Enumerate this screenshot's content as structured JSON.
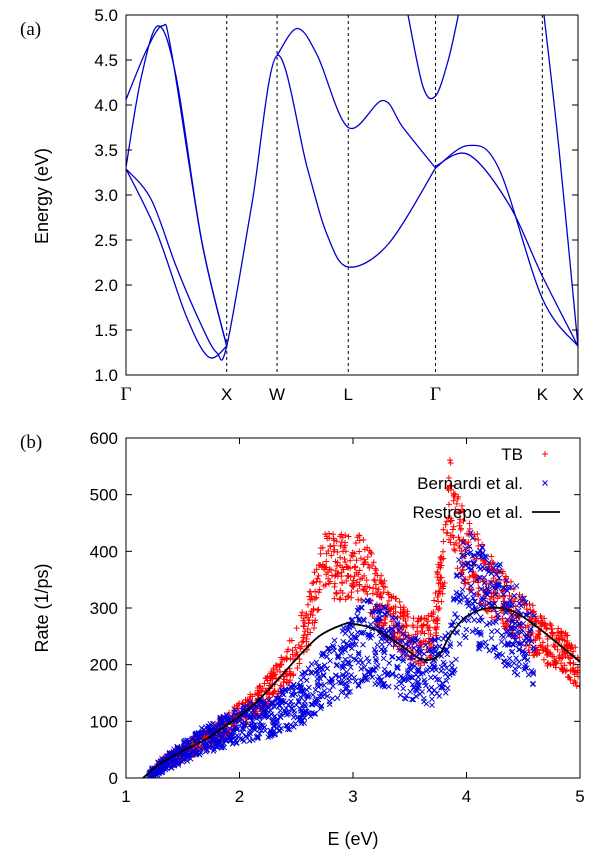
{
  "chart_data": [
    {
      "type": "line",
      "panel_label": "(a)",
      "ylabel": "Energy (eV)",
      "ylim": [
        1.0,
        5.0
      ],
      "yticks": [
        "1.0",
        "1.5",
        "2.0",
        "2.5",
        "3.0",
        "3.5",
        "4.0",
        "4.5",
        "5.0"
      ],
      "kpoints": [
        {
          "label": "Γ",
          "pos": 0.0
        },
        {
          "label": "X",
          "pos": 1.0
        },
        {
          "label": "W",
          "pos": 1.5
        },
        {
          "label": "L",
          "pos": 2.207
        },
        {
          "label": "Γ",
          "pos": 3.073
        },
        {
          "label": "K",
          "pos": 4.134
        },
        {
          "label": "X",
          "pos": 4.488
        }
      ],
      "band_color": "#0000cc",
      "series": [
        {
          "values": [
            [
              0,
              3.29
            ],
            [
              0.25,
              2.95
            ],
            [
              0.5,
              2.2
            ],
            [
              0.75,
              1.55
            ],
            [
              0.9,
              1.25
            ],
            [
              1.0,
              1.32
            ],
            [
              1.25,
              2.9
            ],
            [
              1.5,
              4.55
            ],
            [
              1.8,
              3.3
            ],
            [
              2.0,
              2.55
            ],
            [
              2.207,
              2.2
            ],
            [
              2.6,
              2.45
            ],
            [
              3.073,
              3.3
            ]
          ]
        },
        {
          "values": [
            [
              0,
              3.29
            ],
            [
              0.3,
              2.6
            ],
            [
              0.6,
              1.65
            ],
            [
              0.82,
              1.2
            ],
            [
              1.0,
              1.32
            ]
          ]
        },
        {
          "values": [
            [
              0,
              3.31
            ],
            [
              0.15,
              4.3
            ],
            [
              0.32,
              4.88
            ],
            [
              0.5,
              4.3
            ],
            [
              0.75,
              2.5
            ],
            [
              1.0,
              1.32
            ]
          ]
        },
        {
          "values": [
            [
              0,
              4.06
            ],
            [
              0.2,
              4.6
            ],
            [
              0.36,
              4.88
            ],
            [
              0.45,
              4.6
            ],
            [
              0.75,
              2.5
            ],
            [
              1.0,
              1.32
            ]
          ]
        },
        {
          "values": [
            [
              1.5,
              4.55
            ],
            [
              1.7,
              4.85
            ],
            [
              1.9,
              4.55
            ],
            [
              2.207,
              3.75
            ],
            [
              2.55,
              4.05
            ],
            [
              2.75,
              3.75
            ],
            [
              3.073,
              3.3
            ]
          ]
        },
        {
          "values": [
            [
              3.073,
              3.3
            ],
            [
              3.4,
              3.55
            ],
            [
              3.7,
              3.3
            ],
            [
              4.134,
              1.85
            ],
            [
              4.488,
              1.32
            ]
          ]
        },
        {
          "values": [
            [
              3.073,
              3.32
            ],
            [
              3.4,
              3.45
            ],
            [
              3.8,
              2.9
            ],
            [
              4.134,
              2.1
            ],
            [
              4.488,
              1.32
            ]
          ]
        },
        {
          "values": [
            [
              2.8,
              5.0
            ],
            [
              2.95,
              4.2
            ],
            [
              3.073,
              4.1
            ],
            [
              3.2,
              4.5
            ],
            [
              3.3,
              5.0
            ]
          ]
        },
        {
          "values": [
            [
              4.15,
              5.0
            ],
            [
              4.3,
              3.5
            ],
            [
              4.488,
              1.32
            ]
          ]
        }
      ]
    },
    {
      "type": "scatter",
      "panel_label": "(b)",
      "xlabel": "E (eV)",
      "ylabel": "Rate (1/ps)",
      "xlim": [
        1,
        5
      ],
      "ylim": [
        0,
        600
      ],
      "xticks": [
        "1",
        "2",
        "3",
        "4",
        "5"
      ],
      "yticks": [
        "0",
        "100",
        "200",
        "300",
        "400",
        "500",
        "600"
      ],
      "legend_position": "top-right",
      "series": [
        {
          "name": "TB",
          "marker": "+",
          "color": "#ff0000",
          "values": [
            [
              1.2,
              5
            ],
            [
              1.3,
              22
            ],
            [
              1.5,
              45
            ],
            [
              1.7,
              68
            ],
            [
              1.9,
              95
            ],
            [
              2.0,
              110
            ],
            [
              2.2,
              140
            ],
            [
              2.4,
              190
            ],
            [
              2.6,
              270
            ],
            [
              2.75,
              380
            ],
            [
              2.9,
              370
            ],
            [
              3.05,
              375
            ],
            [
              3.15,
              345
            ],
            [
              3.3,
              290
            ],
            [
              3.45,
              260
            ],
            [
              3.6,
              240
            ],
            [
              3.7,
              255
            ],
            [
              3.8,
              390
            ],
            [
              3.85,
              500
            ],
            [
              3.9,
              440
            ],
            [
              4.0,
              400
            ],
            [
              4.2,
              340
            ],
            [
              4.5,
              275
            ],
            [
              4.7,
              240
            ],
            [
              4.9,
              215
            ],
            [
              5.0,
              185
            ]
          ]
        },
        {
          "name": "Bernardi et al.",
          "marker": "x",
          "color": "#0000dd",
          "values": [
            [
              1.2,
              5
            ],
            [
              1.3,
              20
            ],
            [
              1.5,
              45
            ],
            [
              1.7,
              68
            ],
            [
              1.9,
              85
            ],
            [
              2.1,
              100
            ],
            [
              2.3,
              110
            ],
            [
              2.5,
              130
            ],
            [
              2.7,
              165
            ],
            [
              2.9,
              200
            ],
            [
              3.0,
              215
            ],
            [
              3.1,
              245
            ],
            [
              3.3,
              230
            ],
            [
              3.5,
              195
            ],
            [
              3.65,
              180
            ],
            [
              3.8,
              200
            ],
            [
              3.9,
              270
            ],
            [
              4.0,
              350
            ],
            [
              4.1,
              320
            ],
            [
              4.3,
              290
            ],
            [
              4.5,
              250
            ],
            [
              4.6,
              225
            ]
          ]
        },
        {
          "name": "Restrepo et al.",
          "marker": "line",
          "color": "#000000",
          "values": [
            [
              1.15,
              0
            ],
            [
              1.3,
              25
            ],
            [
              1.5,
              48
            ],
            [
              1.7,
              68
            ],
            [
              1.9,
              95
            ],
            [
              2.1,
              125
            ],
            [
              2.3,
              165
            ],
            [
              2.5,
              210
            ],
            [
              2.7,
              250
            ],
            [
              2.9,
              270
            ],
            [
              3.0,
              272
            ],
            [
              3.2,
              262
            ],
            [
              3.4,
              237
            ],
            [
              3.6,
              210
            ],
            [
              3.75,
              215
            ],
            [
              3.85,
              250
            ],
            [
              4.0,
              285
            ],
            [
              4.2,
              300
            ],
            [
              4.4,
              295
            ],
            [
              4.6,
              270
            ],
            [
              4.8,
              238
            ],
            [
              5.0,
              205
            ]
          ]
        }
      ]
    }
  ]
}
